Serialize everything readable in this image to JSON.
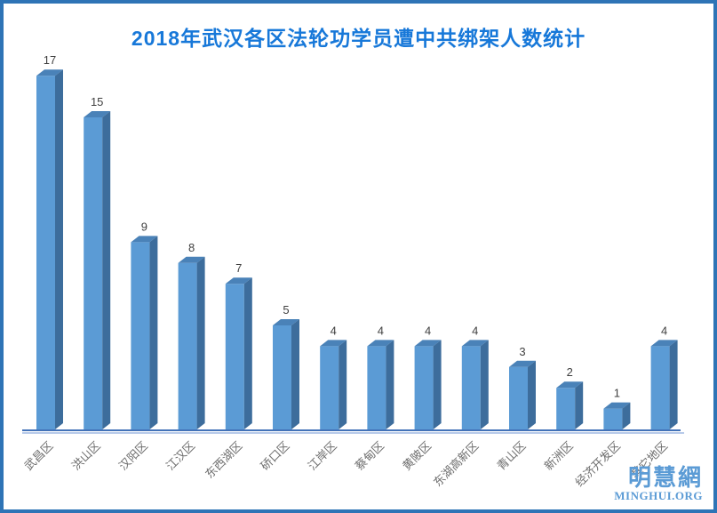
{
  "title": "2018年武汉各区法轮功学员遭中共绑架人数统计",
  "watermark": {
    "name_cn": "明慧網",
    "name_en": "MINGHUI.ORG"
  },
  "colors": {
    "title": "#1778d9",
    "frame_border": "#2e74b6",
    "bar_front": "#5b9bd5",
    "bar_top": "#4a82b8",
    "bar_side": "#3d6d9c",
    "axis_line": "#4372b8",
    "axis_line_light": "#9fb9e2",
    "value_label": "#3f3f3f",
    "category_label": "#6e6e6e",
    "watermark": "#5b9bd5",
    "background": "#ffffff"
  },
  "chart_data": {
    "type": "bar",
    "style": "3d-column",
    "title": "2018年武汉各区法轮功学员遭中共绑架人数统计",
    "categories": [
      "武昌区",
      "洪山区",
      "汉阳区",
      "江汉区",
      "东西湖区",
      "硚口区",
      "江岸区",
      "蔡甸区",
      "黄陂区",
      "东湖高新区",
      "青山区",
      "新洲区",
      "经济开发区",
      "其它地区"
    ],
    "values": [
      17,
      15,
      9,
      8,
      7,
      5,
      4,
      4,
      4,
      4,
      3,
      2,
      1,
      4
    ],
    "xlabel": "",
    "ylabel": "",
    "ylim": [
      0,
      18
    ],
    "grid": false,
    "legend": false,
    "data_labels": true,
    "category_label_rotation_deg": -45
  }
}
